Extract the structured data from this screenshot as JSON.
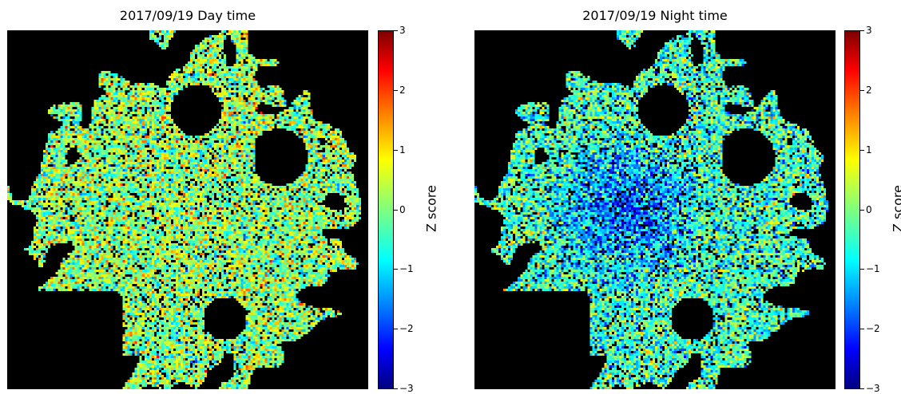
{
  "chart_data": [
    {
      "type": "heatmap",
      "title": "2017/09/19 Day time",
      "colorbar": {
        "label": "Z score",
        "range": [
          -3,
          3
        ],
        "ticks": [
          3,
          2,
          1,
          0,
          -1,
          -2,
          -3
        ],
        "tick_labels": [
          "3",
          "2",
          "1",
          "0",
          "−1",
          "−2",
          "−3"
        ],
        "colormap": "jet"
      },
      "background_color": "#000000",
      "grid": false,
      "axes_visible": false
    },
    {
      "type": "heatmap",
      "title": "2017/09/19 Night time",
      "colorbar": {
        "label": "Z score",
        "range": [
          -3,
          3
        ],
        "ticks": [
          3,
          2,
          1,
          0,
          -1,
          -2,
          -3
        ],
        "tick_labels": [
          "3",
          "2",
          "1",
          "0",
          "−1",
          "−2",
          "−3"
        ],
        "colormap": "jet"
      },
      "background_color": "#000000",
      "grid": false,
      "axes_visible": false
    }
  ]
}
